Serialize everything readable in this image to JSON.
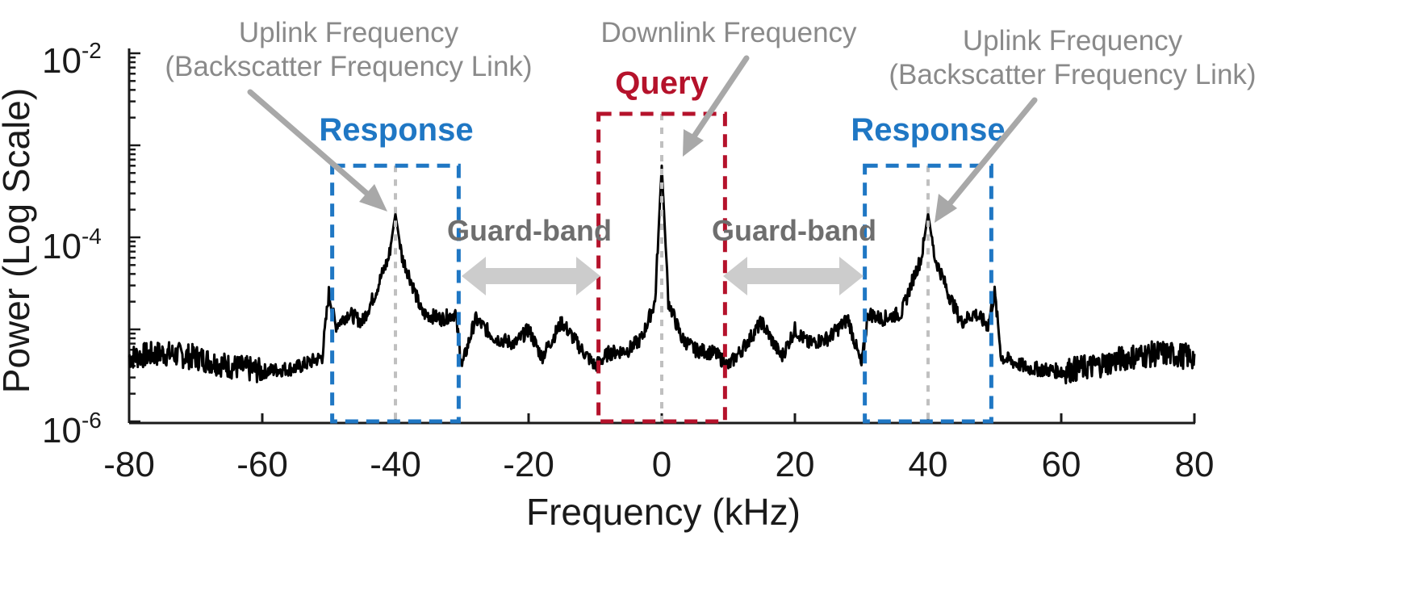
{
  "chart_data": {
    "type": "line",
    "xlabel": "Frequency (kHz)",
    "ylabel": "Power (Log Scale)",
    "xlim": [
      -80,
      80
    ],
    "ylim": [
      1e-06,
      0.01
    ],
    "yscale": "log",
    "x_ticks": [
      "-80",
      "-60",
      "-40",
      "-20",
      "0",
      "20",
      "40",
      "60",
      "80"
    ],
    "y_ticks": [
      {
        "base": "10",
        "exp": "-2"
      },
      {
        "base": "10",
        "exp": "-4"
      },
      {
        "base": "10",
        "exp": "-6"
      }
    ],
    "grid": false,
    "series": [
      {
        "color": "#000000",
        "points": [
          [
            -80,
            5e-06
          ],
          [
            -75,
            5.5e-06
          ],
          [
            -70,
            5e-06
          ],
          [
            -65,
            4e-06
          ],
          [
            -60,
            3.5e-06
          ],
          [
            -55,
            3.8e-06
          ],
          [
            -51,
            5e-06
          ],
          [
            -50,
            2.5e-05
          ],
          [
            -49,
            1.1e-05
          ],
          [
            -47,
            1.5e-05
          ],
          [
            -45,
            1.2e-05
          ],
          [
            -43,
            2.5e-05
          ],
          [
            -42,
            4e-05
          ],
          [
            -41,
            6e-05
          ],
          [
            -40,
            0.00018
          ],
          [
            -39,
            6e-05
          ],
          [
            -38,
            4e-05
          ],
          [
            -36,
            1.5e-05
          ],
          [
            -33,
            1.3e-05
          ],
          [
            -31,
            1.5e-05
          ],
          [
            -30,
            4e-06
          ],
          [
            -28,
            1.3e-05
          ],
          [
            -25,
            8e-06
          ],
          [
            -22,
            7e-06
          ],
          [
            -20,
            1e-05
          ],
          [
            -18,
            5e-06
          ],
          [
            -15,
            1.2e-05
          ],
          [
            -12,
            6e-06
          ],
          [
            -10,
            4e-06
          ],
          [
            -8,
            5.5e-06
          ],
          [
            -5,
            6e-06
          ],
          [
            -3,
            8e-06
          ],
          [
            -1,
            2e-05
          ],
          [
            0,
            0.0006
          ],
          [
            1,
            2e-05
          ],
          [
            3,
            8e-06
          ],
          [
            5,
            6e-06
          ],
          [
            8,
            5.5e-06
          ],
          [
            10,
            4e-06
          ],
          [
            12,
            6e-06
          ],
          [
            15,
            1.2e-05
          ],
          [
            18,
            5e-06
          ],
          [
            20,
            1e-05
          ],
          [
            22,
            7e-06
          ],
          [
            25,
            8e-06
          ],
          [
            28,
            1.3e-05
          ],
          [
            30,
            4e-06
          ],
          [
            31,
            1.5e-05
          ],
          [
            33,
            1.3e-05
          ],
          [
            36,
            1.5e-05
          ],
          [
            38,
            4e-05
          ],
          [
            39,
            6e-05
          ],
          [
            40,
            0.00018
          ],
          [
            41,
            6e-05
          ],
          [
            42,
            4e-05
          ],
          [
            43,
            2.5e-05
          ],
          [
            45,
            1.2e-05
          ],
          [
            47,
            1.5e-05
          ],
          [
            49,
            1.1e-05
          ],
          [
            50,
            2.5e-05
          ],
          [
            51,
            5e-06
          ],
          [
            55,
            3.8e-06
          ],
          [
            60,
            3.5e-06
          ],
          [
            65,
            4e-06
          ],
          [
            70,
            5e-06
          ],
          [
            75,
            5.5e-06
          ],
          [
            80,
            5e-06
          ]
        ]
      }
    ],
    "regions": [
      {
        "label": "Response",
        "x0": -49.5,
        "x1": -30.5,
        "top": 0.0006,
        "color": "#1f77c4",
        "center": -40
      },
      {
        "label": "Query",
        "x0": -9.5,
        "x1": 9.5,
        "top": 0.0022,
        "color": "#b5122b",
        "center": 0
      },
      {
        "label": "Response",
        "x0": 30.5,
        "x1": 49.5,
        "top": 0.0006,
        "color": "#1f77c4",
        "center": 40
      }
    ],
    "annotations": {
      "uplink_left": {
        "line1": "Uplink Frequency",
        "line2": "(Backscatter Frequency Link)"
      },
      "downlink": {
        "line1": "Downlink Frequency"
      },
      "uplink_right": {
        "line1": "Uplink Frequency",
        "line2": "(Backscatter Frequency Link)"
      },
      "guard_left": "Guard-band",
      "guard_right": "Guard-band"
    },
    "colors": {
      "trace": "#000000",
      "response": "#1f77c4",
      "query": "#b5122b",
      "annotation": "#8a8a8a",
      "guard_arrow": "#cccccc",
      "guard_text": "#6e6e6e"
    }
  }
}
